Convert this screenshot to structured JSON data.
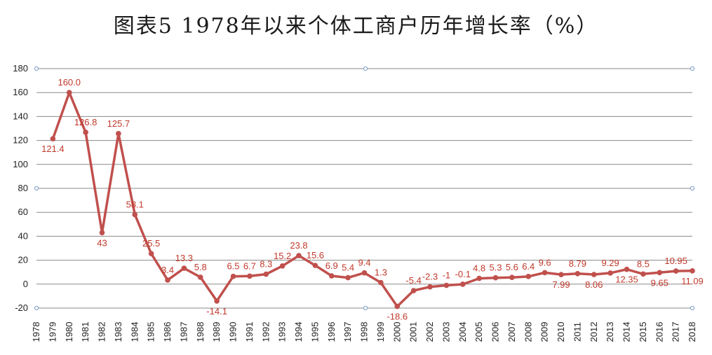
{
  "title": "图表5 1978年以来个体工商户历年增长率（%）",
  "chart_data": {
    "type": "line",
    "title": "图表5 1978年以来个体工商户历年增长率（%）",
    "xlabel": "",
    "ylabel": "",
    "ylim": [
      -20,
      180
    ],
    "yticks": [
      -20,
      0,
      20,
      40,
      60,
      80,
      100,
      120,
      140,
      160,
      180
    ],
    "grid": true,
    "legend": "none",
    "color": "#c0504d",
    "categories": [
      "1978",
      "1979",
      "1980",
      "1981",
      "1982",
      "1983",
      "1984",
      "1985",
      "1986",
      "1987",
      "1988",
      "1989",
      "1990",
      "1991",
      "1992",
      "1993",
      "1994",
      "1995",
      "1996",
      "1997",
      "1998",
      "1999",
      "2000",
      "2001",
      "2002",
      "2003",
      "2004",
      "2005",
      "2006",
      "2007",
      "2008",
      "2009",
      "2010",
      "2011",
      "2012",
      "2013",
      "2014",
      "2015",
      "2016",
      "2017",
      "2018"
    ],
    "series": [
      {
        "values": [
          null,
          121.4,
          160.0,
          126.8,
          43,
          125.7,
          58.1,
          25.5,
          3.4,
          13.3,
          5.8,
          -14.1,
          6.5,
          6.7,
          8.3,
          15.2,
          23.8,
          15.6,
          6.9,
          5.4,
          9.4,
          1.3,
          -18.6,
          -5.4,
          -2.3,
          -1,
          -0.1,
          4.8,
          5.3,
          5.6,
          6.4,
          9.6,
          7.99,
          8.79,
          8.06,
          9.29,
          12.35,
          8.5,
          9.65,
          10.95,
          11.09
        ],
        "data_labels": [
          "",
          "121.4",
          "160.0",
          "126.8",
          "43",
          "125.7",
          "58.1",
          "25.5",
          "3.4",
          "13.3",
          "5.8",
          "-14.1",
          "6.5",
          "6.7",
          "8.3",
          "15.2",
          "23.8",
          "15.6",
          "6.9",
          "5.4",
          "9.4",
          "1.3",
          "-18.6",
          "-5.4",
          "-2.3",
          "-1",
          "-0.1",
          "4.8",
          "5.3",
          "5.6",
          "6.4",
          "9.6",
          "7.99",
          "8.79",
          "8.06",
          "9.29",
          "12.35",
          "8.5",
          "9.65",
          "10.95",
          "11.09"
        ],
        "label_below": [
          false,
          true,
          false,
          false,
          true,
          false,
          false,
          false,
          false,
          false,
          false,
          true,
          false,
          false,
          false,
          false,
          false,
          false,
          false,
          false,
          false,
          false,
          true,
          false,
          false,
          false,
          false,
          false,
          false,
          false,
          false,
          false,
          true,
          false,
          true,
          false,
          true,
          false,
          true,
          false,
          true
        ]
      }
    ]
  }
}
